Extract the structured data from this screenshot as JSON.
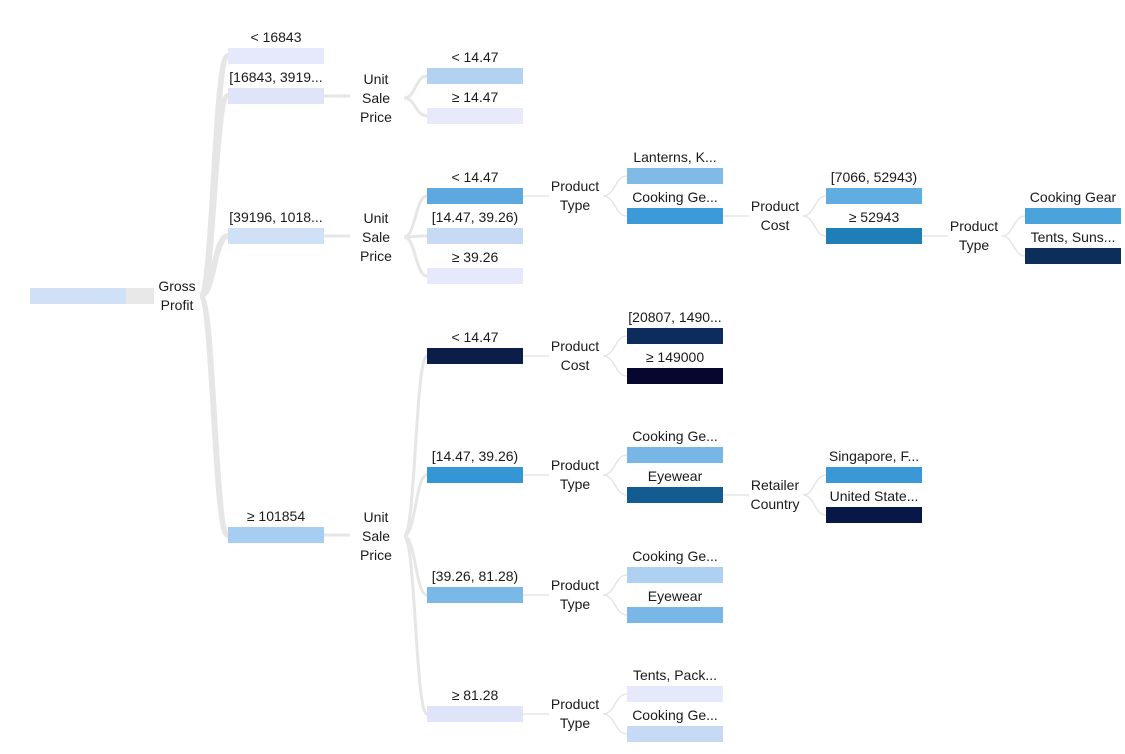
{
  "root": {
    "label": "",
    "split": "Gross Profit"
  },
  "nodes": {
    "gp_lt": {
      "label": "< 16843",
      "color": "#e6e9fb"
    },
    "gp_16843": {
      "label": "[16843, 3919...",
      "color": "#dfe4f9",
      "split": "Unit\nSale\nPrice"
    },
    "gp_16843_lt": {
      "label": "< 14.47",
      "color": "#b3d1f1"
    },
    "gp_16843_ge": {
      "label": "≥ 14.47",
      "color": "#e8eafa"
    },
    "gp_39196": {
      "label": "[39196, 1018...",
      "color": "#cfe0f7",
      "split": "Unit\nSale\nPrice"
    },
    "gp_39196_lt": {
      "label": "< 14.47",
      "color": "#5da9df",
      "split": "Product\nType"
    },
    "gp_39196_lt_lantern": {
      "label": "Lanterns, K...",
      "color": "#7fbbe6"
    },
    "gp_39196_lt_cook": {
      "label": "Cooking Ge...",
      "color": "#3d9ad8",
      "split": "Product\nCost"
    },
    "gp_39196_lt_cook_7066": {
      "label": "[7066, 52943)",
      "color": "#60ade2"
    },
    "gp_39196_lt_cook_ge": {
      "label": "≥ 52943",
      "color": "#1f7db8",
      "split": "Product\nType"
    },
    "gp_39196_lt_cook_ge_cook": {
      "label": "Cooking Gear",
      "color": "#4ba3dc"
    },
    "gp_39196_lt_cook_ge_tents": {
      "label": "Tents, Suns...",
      "color": "#0c2f5a"
    },
    "gp_39196_mid": {
      "label": "[14.47, 39.26)",
      "color": "#c6daf5"
    },
    "gp_39196_ge": {
      "label": "≥ 39.26",
      "color": "#e6e9fb"
    },
    "gp_ge": {
      "label": "≥ 101854",
      "color": "#a7cdf0",
      "split": "Unit\nSale\nPrice"
    },
    "gp_ge_lt": {
      "label": "< 14.47",
      "color": "#0b1d49",
      "split": "Product\nCost"
    },
    "gp_ge_lt_20807": {
      "label": "[20807, 1490...",
      "color": "#0d2c5c"
    },
    "gp_ge_lt_ge": {
      "label": "≥ 149000",
      "color": "#07062f"
    },
    "gp_ge_mid": {
      "label": "[14.47, 39.26)",
      "color": "#3596d6",
      "split": "Product\nType"
    },
    "gp_ge_mid_cook": {
      "label": "Cooking Ge...",
      "color": "#78b6e6"
    },
    "gp_ge_mid_eye": {
      "label": "Eyewear",
      "color": "#135c92",
      "split": "Retailer\nCountry"
    },
    "gp_ge_mid_eye_sg": {
      "label": "Singapore, F...",
      "color": "#3a98d7"
    },
    "gp_ge_mid_eye_us": {
      "label": "United State...",
      "color": "#081846"
    },
    "gp_ge_3926": {
      "label": "[39.26, 81.28)",
      "color": "#7ab8e7",
      "split": "Product\nType"
    },
    "gp_ge_3926_cook": {
      "label": "Cooking Ge...",
      "color": "#aed0f1"
    },
    "gp_ge_3926_eye": {
      "label": "Eyewear",
      "color": "#78b7e6"
    },
    "gp_ge_ge": {
      "label": "≥ 81.28",
      "color": "#dfe4f9",
      "split": "Product\nType"
    },
    "gp_ge_ge_tents": {
      "label": "Tents, Pack...",
      "color": "#e6e9fb"
    },
    "gp_ge_ge_cook": {
      "label": "Cooking Ge...",
      "color": "#c6daf5"
    }
  }
}
